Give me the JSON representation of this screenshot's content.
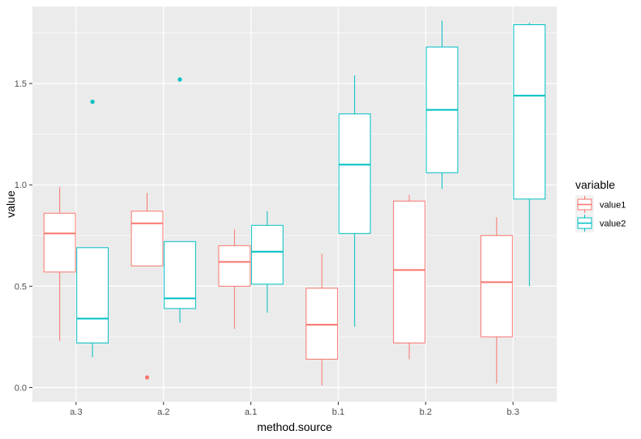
{
  "chart_data": {
    "type": "boxplot",
    "xlabel": "method.source",
    "ylabel": "value",
    "categories": [
      "a.3",
      "a.2",
      "a.1",
      "b.1",
      "b.2",
      "b.3"
    ],
    "ylim": [
      -0.07,
      1.88
    ],
    "yticks": [
      0.0,
      0.5,
      1.0,
      1.5
    ],
    "ytick_labels": [
      "0.0",
      "0.5",
      "1.0",
      "1.5"
    ],
    "grid": true,
    "legend": {
      "title": "variable",
      "position": "right"
    },
    "series": [
      {
        "name": "value1",
        "color": "#F8766D",
        "boxes": [
          {
            "min": 0.23,
            "q1": 0.57,
            "median": 0.76,
            "q3": 0.86,
            "max": 0.99,
            "outliers": []
          },
          {
            "min": 0.6,
            "q1": 0.6,
            "median": 0.81,
            "q3": 0.87,
            "max": 0.96,
            "outliers": [
              0.05
            ]
          },
          {
            "min": 0.29,
            "q1": 0.5,
            "median": 0.62,
            "q3": 0.7,
            "max": 0.78,
            "outliers": []
          },
          {
            "min": 0.01,
            "q1": 0.14,
            "median": 0.31,
            "q3": 0.49,
            "max": 0.66,
            "outliers": []
          },
          {
            "min": 0.14,
            "q1": 0.22,
            "median": 0.58,
            "q3": 0.92,
            "max": 0.95,
            "outliers": []
          },
          {
            "min": 0.02,
            "q1": 0.25,
            "median": 0.52,
            "q3": 0.75,
            "max": 0.84,
            "outliers": []
          }
        ]
      },
      {
        "name": "value2",
        "color": "#00BFC4",
        "boxes": [
          {
            "min": 0.15,
            "q1": 0.22,
            "median": 0.34,
            "q3": 0.69,
            "max": 0.69,
            "outliers": [
              1.41
            ]
          },
          {
            "min": 0.32,
            "q1": 0.39,
            "median": 0.44,
            "q3": 0.72,
            "max": 0.72,
            "outliers": [
              1.52
            ]
          },
          {
            "min": 0.37,
            "q1": 0.51,
            "median": 0.67,
            "q3": 0.8,
            "max": 0.87,
            "outliers": []
          },
          {
            "min": 0.3,
            "q1": 0.76,
            "median": 1.1,
            "q3": 1.35,
            "max": 1.54,
            "outliers": []
          },
          {
            "min": 0.98,
            "q1": 1.06,
            "median": 1.37,
            "q3": 1.68,
            "max": 1.81,
            "outliers": []
          },
          {
            "min": 0.5,
            "q1": 0.93,
            "median": 1.44,
            "q3": 1.79,
            "max": 1.8,
            "outliers": []
          }
        ]
      }
    ]
  }
}
